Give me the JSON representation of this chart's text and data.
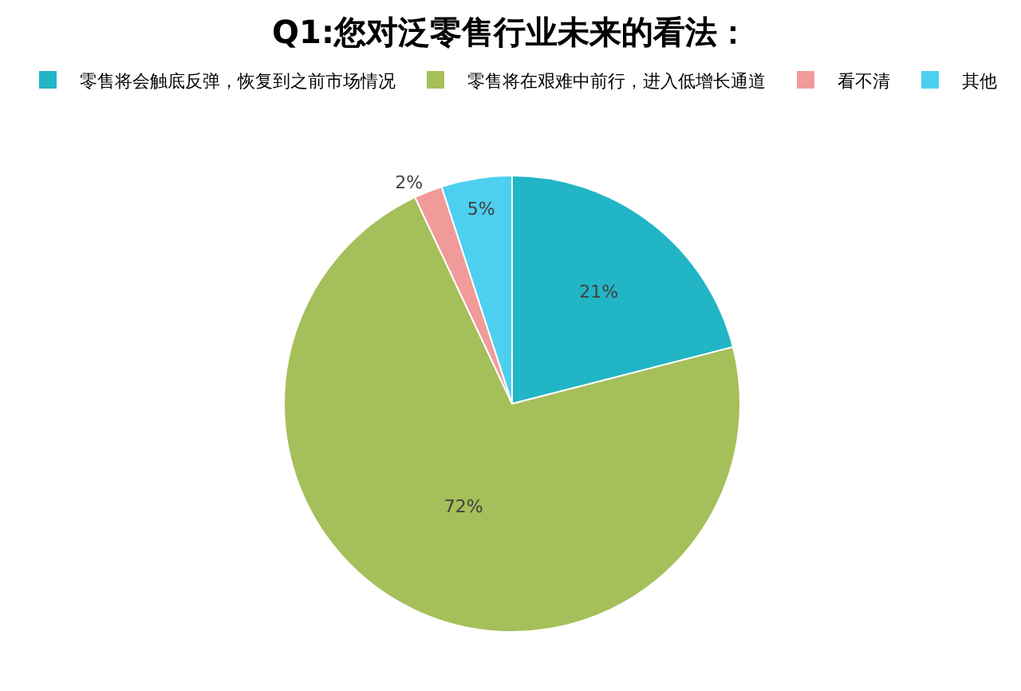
{
  "chart_data": {
    "type": "pie",
    "title": "Q1:您对泛零售行业未来的看法：",
    "categories": [
      "零售将会触底反弹，恢复到之前市场情况",
      "零售将在艰难中前行，进入低增长通道",
      "看不清",
      "其他"
    ],
    "values": [
      21,
      72,
      2,
      5
    ],
    "value_labels": [
      "21%",
      "72%",
      "2%",
      "5%"
    ],
    "colors": [
      "#22b5c6",
      "#a5bf5a",
      "#f19a9a",
      "#4dcfef"
    ],
    "legend": "top"
  }
}
